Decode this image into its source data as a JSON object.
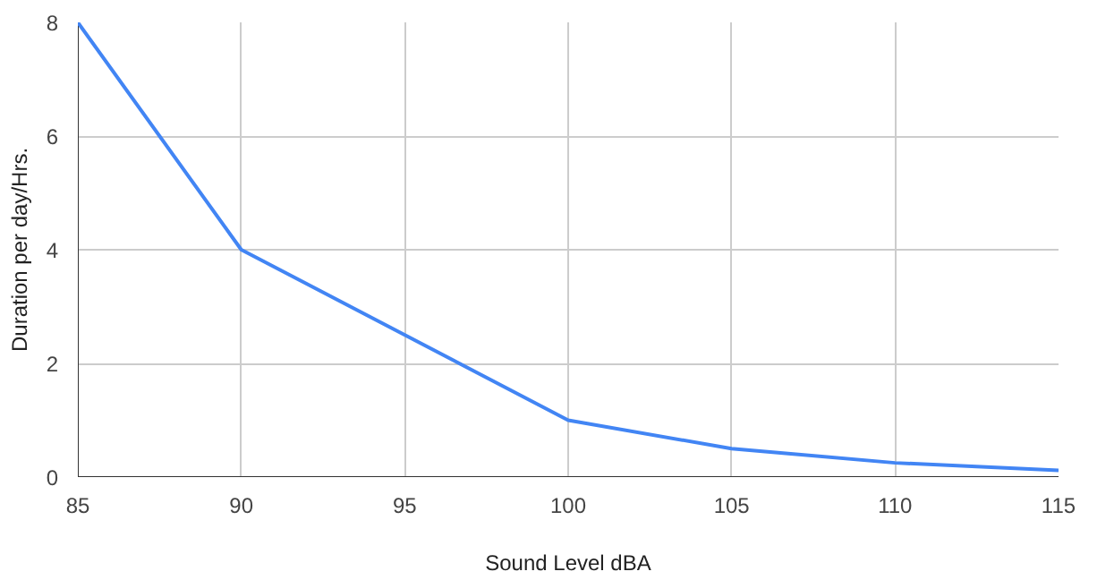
{
  "chart_data": {
    "type": "line",
    "xlabel": "Sound Level dBA",
    "ylabel": "Duration per day/Hrs.",
    "x": [
      85,
      90,
      100,
      105,
      110,
      115
    ],
    "series": [
      {
        "color": "#4285f4",
        "values": [
          8,
          4,
          1,
          0.5,
          0.25,
          0.12
        ]
      }
    ],
    "xlim": [
      85,
      115
    ],
    "xticks": [
      85,
      90,
      95,
      100,
      105,
      110,
      115
    ],
    "ylim": [
      0,
      8
    ],
    "yticks": [
      0,
      2,
      4,
      6,
      8
    ],
    "grid": true,
    "marker": "none",
    "line_style": "solid"
  }
}
